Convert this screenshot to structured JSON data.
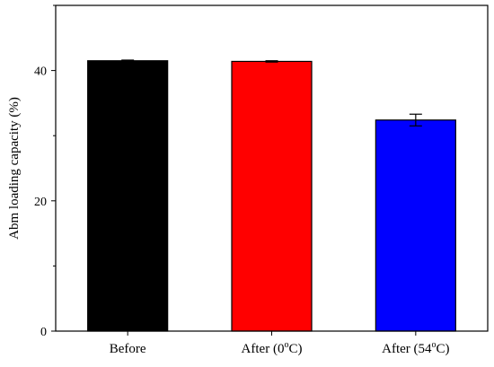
{
  "chart_data": {
    "type": "bar",
    "categories": [
      {
        "main": "Before",
        "sup": "",
        "tail": ""
      },
      {
        "main": "After (0",
        "sup": "o",
        "tail": "C)"
      },
      {
        "main": "After (54",
        "sup": "o",
        "tail": "C)"
      }
    ],
    "values": [
      41.5,
      41.4,
      32.4
    ],
    "errors": [
      0.1,
      0.1,
      0.9
    ],
    "colors": [
      "#000000",
      "#ff0000",
      "#0000ff"
    ],
    "title": "",
    "xlabel": "",
    "ylabel": "Abm loading capacity (%)",
    "ylim": [
      0,
      50
    ],
    "yticks": [
      0,
      20,
      40
    ],
    "yminor_ticks": [
      10,
      30,
      50
    ],
    "grid": false,
    "legend": "none"
  }
}
